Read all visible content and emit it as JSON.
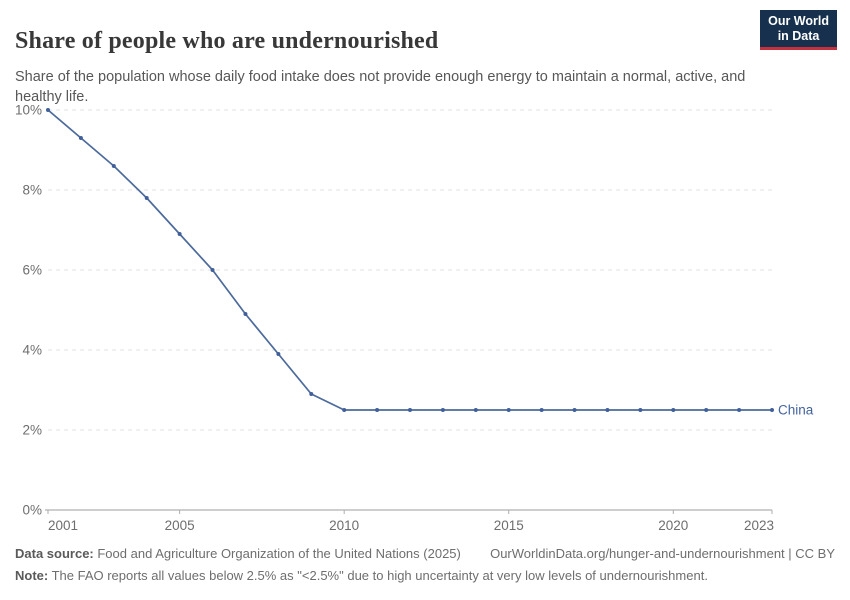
{
  "header": {
    "title": "Share of people who are undernourished",
    "subtitle": "Share of the population whose daily food intake does not provide enough energy to maintain a normal, active, and healthy life.",
    "logo_line1": "Our World",
    "logo_line2": "in Data"
  },
  "chart_data": {
    "type": "line",
    "title": "Share of people who are undernourished",
    "x": [
      2001,
      2002,
      2003,
      2004,
      2005,
      2006,
      2007,
      2008,
      2009,
      2010,
      2011,
      2012,
      2013,
      2014,
      2015,
      2016,
      2017,
      2018,
      2019,
      2020,
      2021,
      2022,
      2023
    ],
    "series": [
      {
        "name": "China",
        "values": [
          10,
          9.3,
          8.6,
          7.8,
          6.9,
          6,
          4.9,
          3.9,
          2.9,
          2.5,
          2.5,
          2.5,
          2.5,
          2.5,
          2.5,
          2.5,
          2.5,
          2.5,
          2.5,
          2.5,
          2.5,
          2.5,
          2.5
        ]
      }
    ],
    "xlabel": "",
    "ylabel": "",
    "xlim": [
      2001,
      2023
    ],
    "ylim": [
      0,
      10
    ],
    "yticks": [
      {
        "value": 0,
        "label": "0%"
      },
      {
        "value": 2,
        "label": "2%"
      },
      {
        "value": 4,
        "label": "4%"
      },
      {
        "value": 6,
        "label": "6%"
      },
      {
        "value": 8,
        "label": "8%"
      },
      {
        "value": 10,
        "label": "10%"
      }
    ],
    "xticks": [
      2001,
      2005,
      2010,
      2015,
      2020,
      2023
    ],
    "grid": "horizontal-dashed",
    "legend_position": "end-of-line"
  },
  "colors": {
    "series_line": "#4c6a9c",
    "series_marker": "#41609a",
    "grid": "#e0e0e0",
    "axis_line": "#9e9e9e",
    "tick": "#adadad",
    "tick_label": "#6e6e6e",
    "entity_label": "#44639e",
    "logo_bg": "#16304e",
    "logo_stripe": "#c5303e"
  },
  "footer": {
    "data_source_label": "Data source:",
    "data_source_text": " Food and Agriculture Organization of the United Nations (2025)",
    "link_text": "OurWorldinData.org/hunger-and-undernourishment | CC BY",
    "note_label": "Note:",
    "note_text": " The FAO reports all values below 2.5% as \"<2.5%\" due to high uncertainty at very low levels of undernourishment."
  }
}
